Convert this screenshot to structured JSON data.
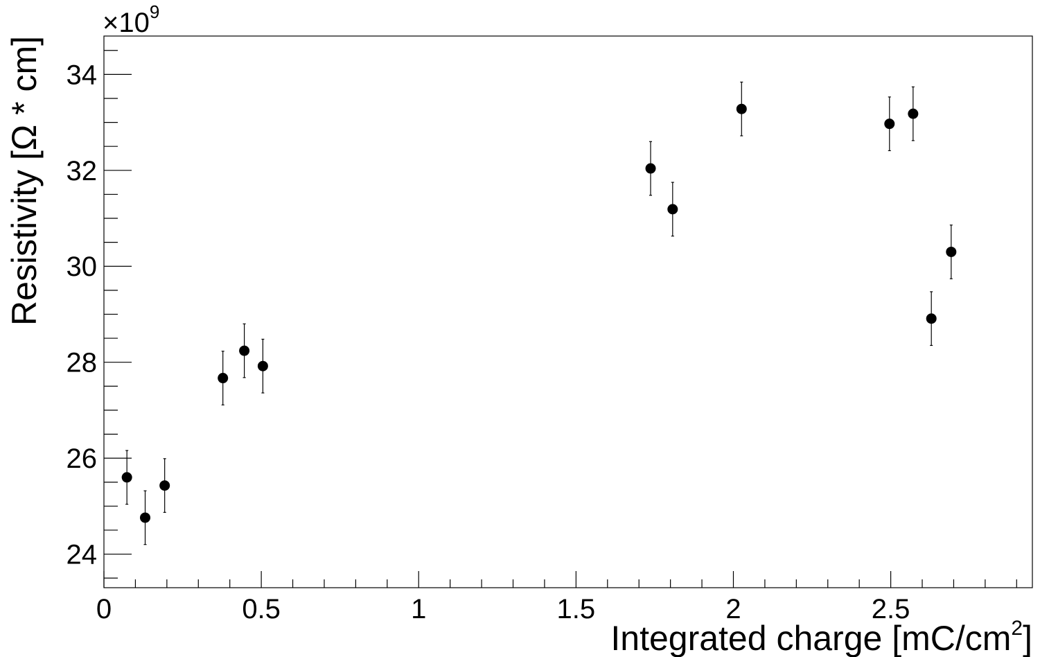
{
  "chart_data": {
    "type": "scatter",
    "title": "",
    "xlabel": "Integrated charge [mC/cm",
    "xlabel_sup": "2",
    "xlabel_close": "]",
    "ylabel": "Resistivity [Ω * cm]",
    "y_multiplier_prefix": "×10",
    "y_multiplier_exp": "9",
    "xlim": [
      0,
      2.95
    ],
    "ylim": [
      23.3,
      34.8
    ],
    "x_ticks": [
      {
        "value": 0,
        "label": "0"
      },
      {
        "value": 0.5,
        "label": "0.5"
      },
      {
        "value": 1,
        "label": "1"
      },
      {
        "value": 1.5,
        "label": "1.5"
      },
      {
        "value": 2,
        "label": "2"
      },
      {
        "value": 2.5,
        "label": "2.5"
      }
    ],
    "y_ticks": [
      {
        "value": 24,
        "label": "24"
      },
      {
        "value": 26,
        "label": "26"
      },
      {
        "value": 28,
        "label": "28"
      },
      {
        "value": 30,
        "label": "30"
      },
      {
        "value": 32,
        "label": "32"
      },
      {
        "value": 34,
        "label": "34"
      }
    ],
    "grid": false,
    "legend": "none",
    "marker_color": "#000000",
    "points": [
      {
        "x": 0.073,
        "y": 25.6,
        "err": 0.56
      },
      {
        "x": 0.131,
        "y": 24.76,
        "err": 0.56
      },
      {
        "x": 0.193,
        "y": 25.43,
        "err": 0.56
      },
      {
        "x": 0.378,
        "y": 27.67,
        "err": 0.56
      },
      {
        "x": 0.446,
        "y": 28.24,
        "err": 0.56
      },
      {
        "x": 0.505,
        "y": 27.92,
        "err": 0.56
      },
      {
        "x": 1.737,
        "y": 32.04,
        "err": 0.56
      },
      {
        "x": 1.807,
        "y": 31.19,
        "err": 0.56
      },
      {
        "x": 2.026,
        "y": 33.28,
        "err": 0.56
      },
      {
        "x": 2.496,
        "y": 32.97,
        "err": 0.56
      },
      {
        "x": 2.571,
        "y": 33.18,
        "err": 0.56
      },
      {
        "x": 2.629,
        "y": 28.91,
        "err": 0.56
      },
      {
        "x": 2.692,
        "y": 30.3,
        "err": 0.56
      }
    ]
  }
}
